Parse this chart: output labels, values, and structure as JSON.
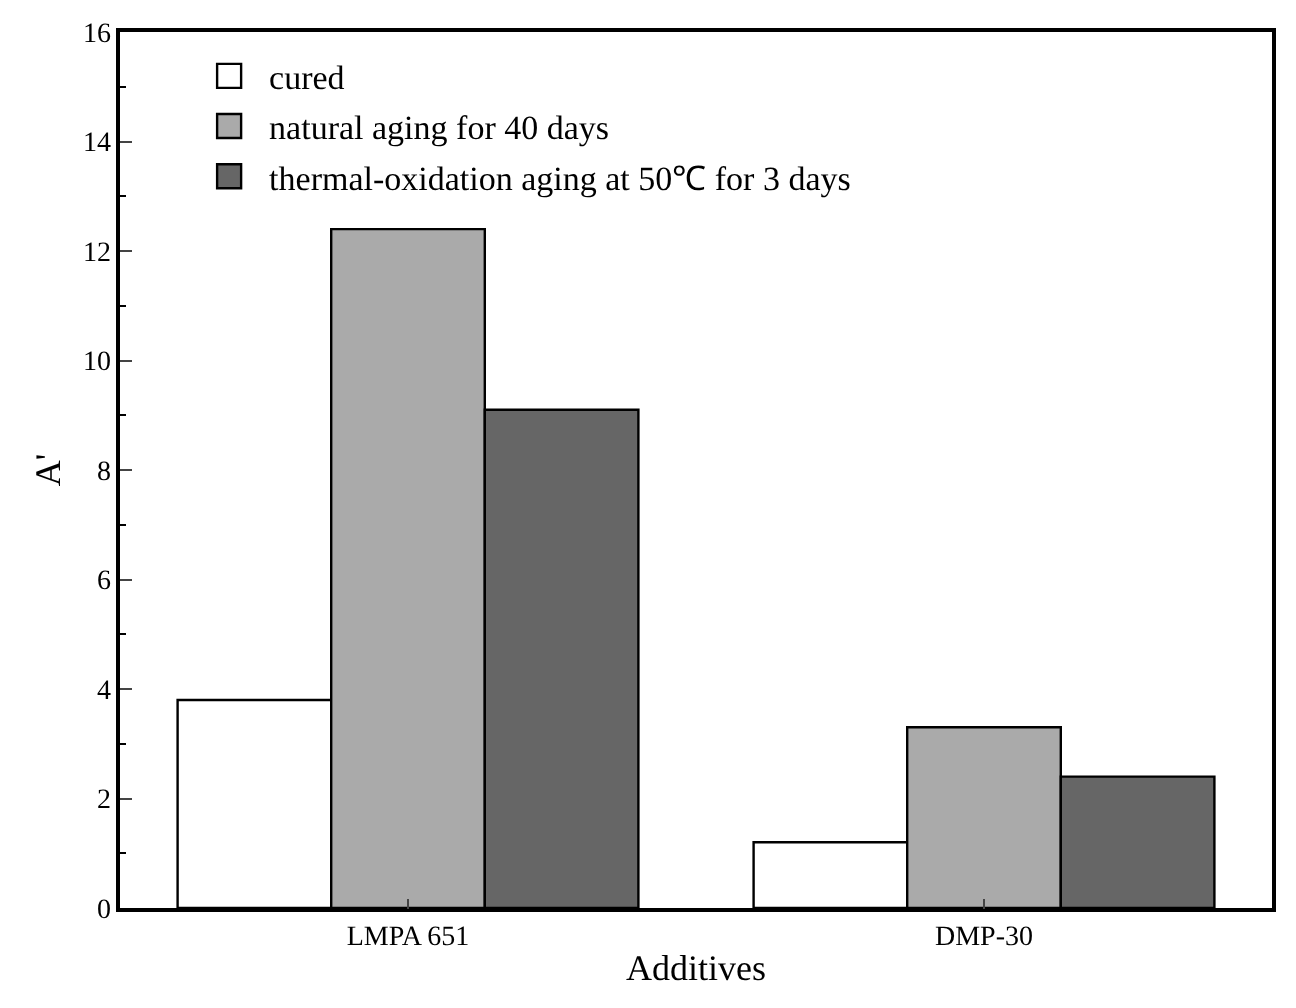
{
  "chart_data": {
    "type": "bar",
    "xlabel": "Additives",
    "ylabel": "A'",
    "categories": [
      "LMPA 651",
      "DMP-30"
    ],
    "series": [
      {
        "name": "cured",
        "color": "#ffffff",
        "values": [
          3.8,
          1.2
        ]
      },
      {
        "name": "natural aging for 40 days",
        "color": "#aaaaaa",
        "values": [
          12.4,
          3.3
        ]
      },
      {
        "name": "thermal-oxidation aging at 50℃ for 3 days",
        "color": "#666666",
        "values": [
          9.1,
          2.4
        ]
      }
    ],
    "ylim": [
      0,
      16
    ],
    "yticks": [
      0,
      2,
      4,
      6,
      8,
      10,
      12,
      14,
      16
    ],
    "legend": "top left"
  }
}
